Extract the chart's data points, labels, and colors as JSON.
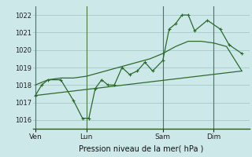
{
  "bg_color": "#cce8e8",
  "grid_color": "#aacfcf",
  "line_color": "#2d6b2d",
  "vline_color": "#4a7a4a",
  "title": "Pression niveau de la mer( hPa )",
  "ylim": [
    1015.5,
    1022.5
  ],
  "yticks": [
    1016,
    1017,
    1018,
    1019,
    1020,
    1021,
    1022
  ],
  "xlabel_ticks": [
    "Ven",
    "Lun",
    "Sam",
    "Dim"
  ],
  "xlabel_tick_x": [
    0.0,
    2.0,
    5.0,
    7.0
  ],
  "vlines_x": [
    0.0,
    2.0,
    5.0,
    7.0
  ],
  "series1_x": [
    0.0,
    0.25,
    0.5,
    1.0,
    1.5,
    1.85,
    2.1,
    2.35,
    2.6,
    2.85,
    3.1,
    3.4,
    3.7,
    4.0,
    4.3,
    4.6,
    5.0,
    5.25,
    5.5,
    5.75,
    6.0,
    6.25,
    6.75,
    7.25,
    7.6,
    8.1
  ],
  "series1_y": [
    1017.4,
    1018.0,
    1018.3,
    1018.3,
    1017.1,
    1016.1,
    1016.1,
    1017.8,
    1018.3,
    1018.0,
    1018.0,
    1019.0,
    1018.6,
    1018.8,
    1019.3,
    1018.8,
    1019.4,
    1021.2,
    1021.5,
    1022.0,
    1022.0,
    1021.1,
    1021.7,
    1021.2,
    1020.3,
    1019.8
  ],
  "series2_x": [
    0.0,
    0.5,
    1.0,
    1.5,
    2.0,
    2.5,
    3.0,
    3.5,
    4.0,
    4.5,
    5.0,
    5.5,
    6.0,
    6.5,
    7.0,
    7.5,
    8.1
  ],
  "series2_y": [
    1018.0,
    1018.3,
    1018.4,
    1018.4,
    1018.5,
    1018.7,
    1018.9,
    1019.1,
    1019.3,
    1019.5,
    1019.8,
    1020.2,
    1020.5,
    1020.5,
    1020.4,
    1020.2,
    1018.8
  ],
  "series3_x": [
    0.0,
    8.1
  ],
  "series3_y": [
    1017.4,
    1018.8
  ],
  "xlim": [
    -0.1,
    8.4
  ]
}
